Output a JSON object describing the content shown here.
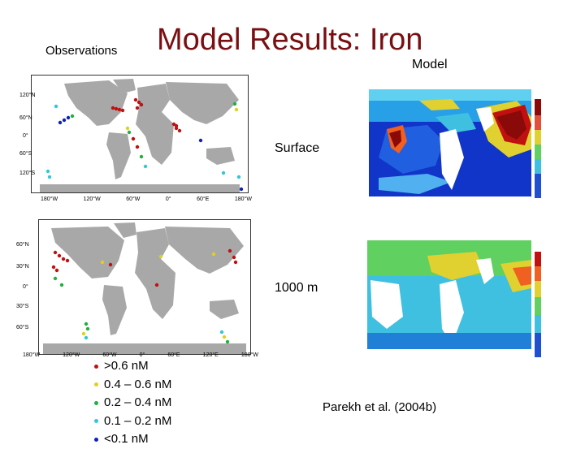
{
  "header": {
    "observations_label": "Observations",
    "title": "Model Results: Iron",
    "model_label": "Model"
  },
  "panels": {
    "surface_label": "Surface",
    "depth_label": "1000 m"
  },
  "observation_maps": {
    "top": {
      "lat_ticks": [
        "120°N",
        "60°N",
        "0°",
        "60°S",
        "120°S"
      ],
      "lon_ticks": [
        "180°W",
        "120°W",
        "60°W",
        "0°",
        "60°E",
        "180°W"
      ]
    },
    "bottom": {
      "lat_ticks": [
        "60°N",
        "30°N",
        "0°",
        "30°S",
        "60°S"
      ],
      "lon_ticks": [
        "180°W",
        "120°W",
        "60°W",
        "0°",
        "60°E",
        "120°E",
        "180°W"
      ]
    }
  },
  "legend": [
    {
      "label": ">0.6 nM",
      "color": "#c01010"
    },
    {
      "label": "0.4 – 0.6 nM",
      "color": "#e0d020"
    },
    {
      "label": "0.2 – 0.4 nM",
      "color": "#20b040"
    },
    {
      "label": "0.1 – 0.2 nM",
      "color": "#30c8d8"
    },
    {
      "label": "<0.1 nM",
      "color": "#1020b0"
    }
  ],
  "citation": "Parekh et al. (2004b)",
  "colors": {
    "title": "#7a0f12",
    "land": "#a8a8a8",
    "ocean_low": "#1030c0",
    "ocean_high": "#8a0a0a"
  }
}
